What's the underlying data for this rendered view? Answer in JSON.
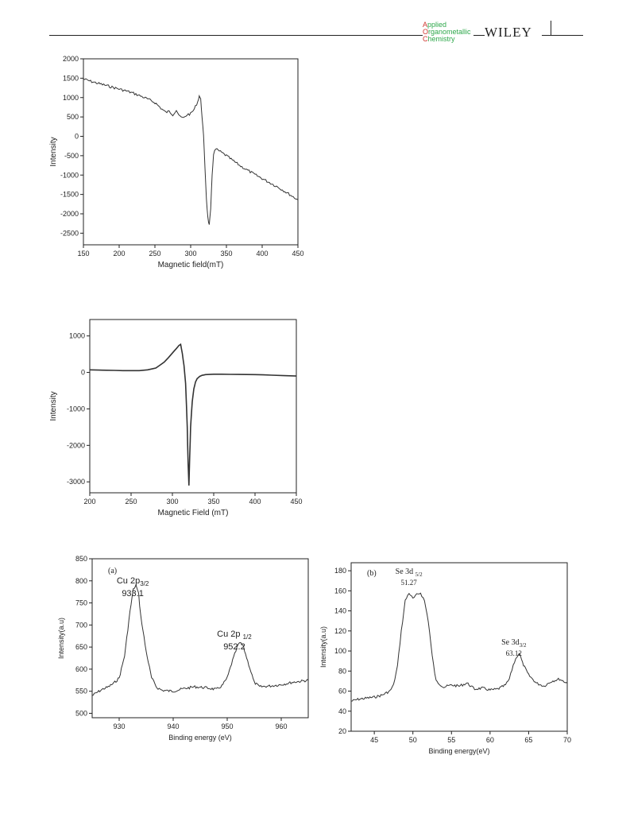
{
  "header": {
    "journal_lines": [
      {
        "first": "A",
        "rest": "pplied"
      },
      {
        "first": "O",
        "rest": "rganometallic"
      },
      {
        "first": "C",
        "rest": "hemistry"
      }
    ],
    "publisher": "WILEY"
  },
  "chart_data": [
    {
      "id": "epr1",
      "type": "line",
      "title": "",
      "xlabel": "Magnetic field(mT)",
      "ylabel": "Intensity",
      "xlim": [
        150,
        450
      ],
      "ylim": [
        -2800,
        2000
      ],
      "xticks": [
        150,
        200,
        250,
        300,
        350,
        400,
        450
      ],
      "yticks": [
        2000,
        1500,
        1000,
        500,
        0,
        -500,
        -1000,
        -1500,
        -2000,
        -2500
      ],
      "series": [
        {
          "x": [
            150,
            160,
            170,
            180,
            190,
            200,
            210,
            220,
            230,
            240,
            250,
            260,
            265,
            270,
            275,
            280,
            285,
            290,
            295,
            300,
            305,
            310,
            312,
            314,
            316,
            318,
            320,
            322,
            324,
            326,
            328,
            330,
            332,
            335,
            340,
            350,
            360,
            370,
            380,
            390,
            400,
            410,
            420,
            430,
            440,
            450
          ],
          "y": [
            1480,
            1420,
            1370,
            1320,
            1270,
            1220,
            1170,
            1110,
            1040,
            960,
            870,
            700,
            620,
            640,
            560,
            680,
            500,
            470,
            560,
            580,
            700,
            900,
            1050,
            950,
            500,
            0,
            -800,
            -1600,
            -2100,
            -2300,
            -1900,
            -1000,
            -450,
            -330,
            -380,
            -500,
            -640,
            -770,
            -880,
            -990,
            -1090,
            -1190,
            -1290,
            -1400,
            -1520,
            -1640
          ]
        }
      ]
    },
    {
      "id": "epr2",
      "type": "line",
      "title": "",
      "xlabel": "Magnetic Field (mT)",
      "ylabel": "Intensity",
      "xlim": [
        200,
        450
      ],
      "ylim": [
        -3300,
        1450
      ],
      "xticks": [
        200,
        250,
        300,
        350,
        400,
        450
      ],
      "yticks": [
        1000,
        0,
        -1000,
        -2000,
        -3000
      ],
      "series": [
        {
          "x": [
            200,
            220,
            240,
            260,
            270,
            280,
            290,
            295,
            300,
            305,
            308,
            310,
            312,
            314,
            316,
            318,
            319,
            320,
            321,
            322,
            324,
            326,
            328,
            330,
            333,
            336,
            340,
            350,
            360,
            380,
            400,
            420,
            450
          ],
          "y": [
            70,
            60,
            50,
            50,
            70,
            120,
            280,
            400,
            530,
            660,
            740,
            770,
            520,
            190,
            -300,
            -1500,
            -2500,
            -3100,
            -2300,
            -1500,
            -800,
            -450,
            -260,
            -170,
            -110,
            -80,
            -60,
            -50,
            -50,
            -55,
            -60,
            -75,
            -100
          ]
        }
      ]
    },
    {
      "id": "xps-cu",
      "type": "line",
      "title": "",
      "panel_label": "(a)",
      "xlabel": "Binding energy (eV)",
      "ylabel": "Intensity(a.u)",
      "xlim": [
        925,
        965
      ],
      "ylim": [
        490,
        850
      ],
      "xticks": [
        930,
        940,
        950,
        960
      ],
      "yticks": [
        500,
        550,
        600,
        650,
        700,
        750,
        800,
        850
      ],
      "annotations": [
        {
          "label": "Cu 2p",
          "sub": "3/2",
          "value": "933.1",
          "x": 933.1
        },
        {
          "label": "Cu 2p ",
          "sub": "1/2",
          "value": "952.2",
          "x": 952.2
        }
      ],
      "series": [
        {
          "x": [
            925,
            926,
            927,
            928,
            929,
            930,
            931,
            932,
            932.6,
            933.1,
            933.6,
            934,
            935,
            936,
            937,
            938,
            940,
            942,
            944,
            946,
            948,
            949,
            950,
            951,
            952,
            952.5,
            953,
            954,
            955,
            956,
            958,
            960,
            962,
            965
          ],
          "y": [
            540,
            548,
            555,
            560,
            568,
            580,
            630,
            730,
            780,
            790,
            770,
            720,
            640,
            580,
            558,
            552,
            550,
            556,
            560,
            558,
            554,
            562,
            580,
            620,
            655,
            660,
            650,
            610,
            570,
            560,
            562,
            565,
            570,
            575
          ]
        }
      ]
    },
    {
      "id": "xps-se",
      "type": "line",
      "title": "",
      "panel_label": "(b)",
      "xlabel": "Binding energy(eV)",
      "ylabel": "Intensity(a.u)",
      "xlim": [
        42,
        70
      ],
      "ylim": [
        20,
        188
      ],
      "xticks": [
        45,
        50,
        55,
        60,
        65,
        70
      ],
      "yticks": [
        20,
        40,
        60,
        80,
        100,
        120,
        140,
        160,
        180
      ],
      "annotations": [
        {
          "label": "Se 3d ",
          "sub": "5/2",
          "value": "51.27",
          "x": 50.3
        },
        {
          "label": "Se 3d",
          "sub": "3/2",
          "value": "63.12",
          "x": 63.7
        }
      ],
      "series": [
        {
          "x": [
            42,
            43,
            44,
            45,
            46,
            47,
            47.5,
            48,
            48.5,
            49,
            49.5,
            50,
            50.5,
            51,
            51.5,
            52,
            52.5,
            53,
            54,
            55,
            56,
            57,
            58,
            59,
            60,
            61,
            62,
            62.5,
            63,
            63.5,
            63.8,
            64.2,
            65,
            66,
            67,
            68,
            69,
            70
          ],
          "y": [
            50,
            52,
            53,
            54,
            56,
            60,
            66,
            85,
            120,
            150,
            158,
            152,
            156,
            158,
            150,
            130,
            95,
            70,
            64,
            66,
            65,
            68,
            62,
            63,
            61,
            62,
            66,
            72,
            86,
            95,
            98,
            88,
            76,
            68,
            65,
            70,
            72,
            68
          ]
        }
      ]
    }
  ]
}
